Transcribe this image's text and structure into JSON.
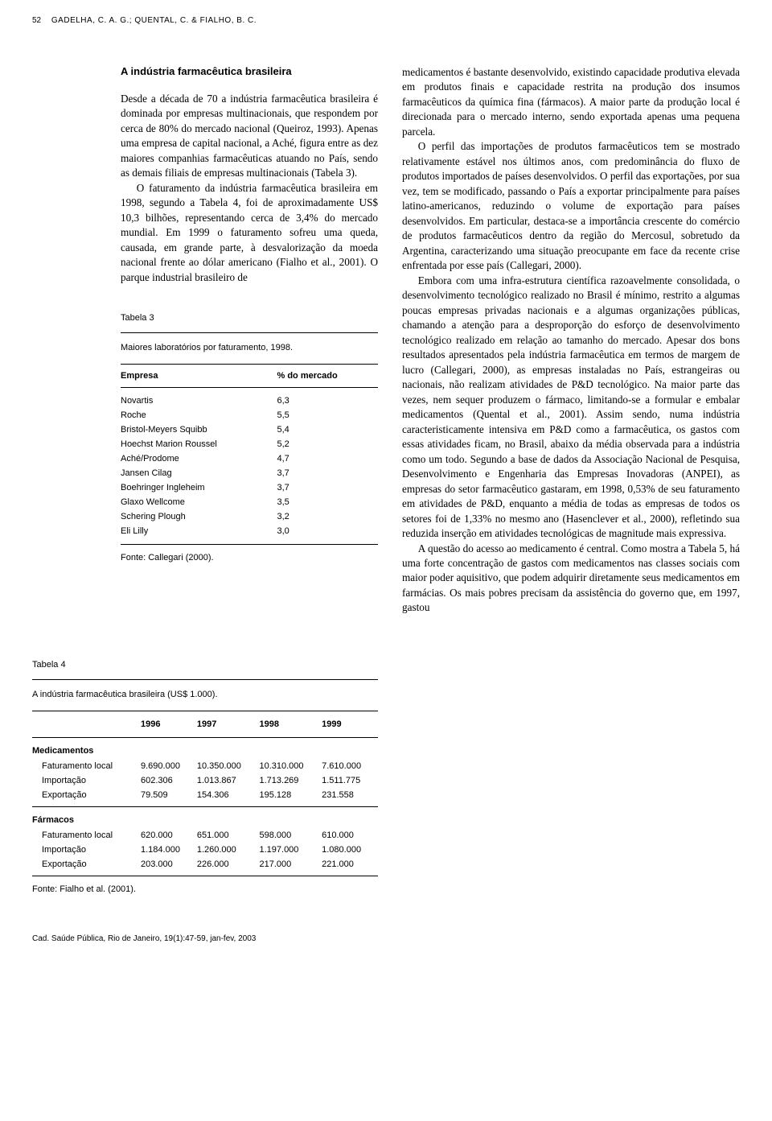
{
  "header": {
    "page_number": "52",
    "authors": "GADELHA, C. A. G.; QUENTAL, C. & FIALHO, B. C."
  },
  "section": {
    "title": "A indústria farmacêutica brasileira",
    "para1": "Desde a década de 70 a indústria farmacêutica brasileira é dominada por empresas multinacionais, que respondem por cerca de 80% do mercado nacional (Queiroz, 1993). Apenas uma empresa de capital nacional, a Aché, figura entre as dez maiores companhias farmacêuticas atuando no País, sendo as demais filiais de empresas multinacionais (Tabela 3).",
    "para2": "O faturamento da indústria farmacêutica brasileira em 1998, segundo a Tabela 4, foi de aproximadamente US$ 10,3 bilhões, representando cerca de 3,4% do mercado mundial. Em 1999 o faturamento sofreu uma queda, causada, em grande parte, à desvalorização da moeda nacional frente ao dólar americano (Fialho et al., 2001). O parque industrial brasileiro de"
  },
  "right_column": {
    "text": "medicamentos é bastante desenvolvido, existindo capacidade produtiva elevada em produtos finais e capacidade restrita na produção dos insumos farmacêuticos da química fina (fármacos). A maior parte da produção local é direcionada para o mercado interno, sendo exportada apenas uma pequena parcela.\n    O perfil das importações de produtos farmacêuticos tem se mostrado relativamente estável nos últimos anos, com predominância do fluxo de produtos importados de países desenvolvidos. O perfil das exportações, por sua vez, tem se modificado, passando o País a exportar principalmente para países latino-americanos, reduzindo o volume de exportação para países desenvolvidos. Em particular, destaca-se a importância crescente do comércio de produtos farmacêuticos dentro da região do Mercosul, sobretudo da Argentina, caracterizando uma situação preocupante em face da recente crise enfrentada por esse país (Callegari, 2000).\n    Embora com uma infra-estrutura científica razoavelmente consolidada, o desenvolvimento tecnológico realizado no Brasil é mínimo, restrito a algumas poucas empresas privadas nacionais e a algumas organizações públicas, chamando a atenção para a desproporção do esforço de desenvolvimento tecnológico realizado em relação ao tamanho do mercado. Apesar dos bons resultados apresentados pela indústria farmacêutica em termos de margem de lucro (Callegari, 2000), as empresas instaladas no País, estrangeiras ou nacionais, não realizam atividades de P&D tecnológico. Na maior parte das vezes, nem sequer produzem o fármaco, limitando-se a formular e embalar medicamentos (Quental et al., 2001). Assim sendo, numa indústria caracteristicamente intensiva em P&D como a farmacêutica, os gastos com essas atividades ficam, no Brasil, abaixo da média observada para a indústria como um todo. Segundo a base de dados da Associação Nacional de Pesquisa, Desenvolvimento e Engenharia das Empresas Inovadoras (ANPEI), as empresas do setor farmacêutico gastaram, em 1998, 0,53% de seu faturamento em atividades de P&D, enquanto a média de todas as empresas de todos os setores foi de 1,33% no mesmo ano (Hasenclever et al., 2000), refletindo sua reduzida inserção em atividades tecnológicas de magnitude mais expressiva.\n    A questão do acesso ao medicamento é central. Como mostra a Tabela 5, há uma forte concentração de gastos com medicamentos nas classes sociais com maior poder aquisitivo, que podem adquirir diretamente seus medicamentos em farmácias. Os mais pobres precisam da assistência do governo que, em 1997, gastou"
  },
  "table3": {
    "label": "Tabela 3",
    "caption": "Maiores laboratórios por faturamento, 1998.",
    "col1_header": "Empresa",
    "col2_header": "% do mercado",
    "rows": [
      {
        "company": "Novartis",
        "share": "6,3"
      },
      {
        "company": "Roche",
        "share": "5,5"
      },
      {
        "company": "Bristol-Meyers Squibb",
        "share": "5,4"
      },
      {
        "company": "Hoechst Marion Roussel",
        "share": "5,2"
      },
      {
        "company": "Aché/Prodome",
        "share": "4,7"
      },
      {
        "company": "Jansen Cilag",
        "share": "3,7"
      },
      {
        "company": "Boehringer Ingleheim",
        "share": "3,7"
      },
      {
        "company": "Glaxo Wellcome",
        "share": "3,5"
      },
      {
        "company": "Schering Plough",
        "share": "3,2"
      },
      {
        "company": "Eli Lilly",
        "share": "3,0"
      }
    ],
    "source": "Fonte: Callegari (2000)."
  },
  "table4": {
    "label": "Tabela 4",
    "caption": "A indústria farmacêutica brasileira (US$ 1.000).",
    "years": [
      "1996",
      "1997",
      "1998",
      "1999"
    ],
    "groups": [
      {
        "name": "Medicamentos",
        "rows": [
          {
            "label": "Faturamento local",
            "values": [
              "9.690.000",
              "10.350.000",
              "10.310.000",
              "7.610.000"
            ]
          },
          {
            "label": "Importação",
            "values": [
              "602.306",
              "1.013.867",
              "1.713.269",
              "1.511.775"
            ]
          },
          {
            "label": "Exportação",
            "values": [
              "79.509",
              "154.306",
              "195.128",
              "231.558"
            ]
          }
        ]
      },
      {
        "name": "Fármacos",
        "rows": [
          {
            "label": "Faturamento local",
            "values": [
              "620.000",
              "651.000",
              "598.000",
              "610.000"
            ]
          },
          {
            "label": "Importação",
            "values": [
              "1.184.000",
              "1.260.000",
              "1.197.000",
              "1.080.000"
            ]
          },
          {
            "label": "Exportação",
            "values": [
              "203.000",
              "226.000",
              "217.000",
              "221.000"
            ]
          }
        ]
      }
    ],
    "source": "Fonte: Fialho et al. (2001)."
  },
  "footer": {
    "citation": "Cad. Saúde Pública, Rio de Janeiro, 19(1):47-59, jan-fev, 2003"
  }
}
